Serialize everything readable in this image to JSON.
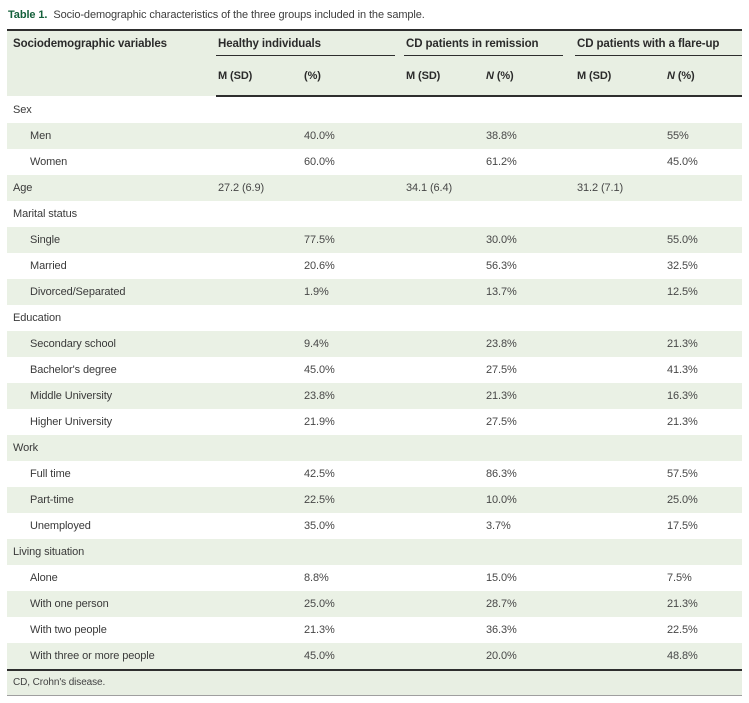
{
  "caption": {
    "label": "Table 1.",
    "text": "Socio-demographic characteristics of the three groups included in the sample."
  },
  "table": {
    "variable_header": "Sociodemographic variables",
    "groups": [
      {
        "label": "Healthy individuals",
        "sub": [
          "M (SD)",
          "(%)"
        ]
      },
      {
        "label": "CD patients in remission",
        "sub": [
          "M (SD)",
          "N (%)"
        ]
      },
      {
        "label": "CD patients with a flare-up",
        "sub": [
          "M (SD)",
          "N (%)"
        ]
      }
    ],
    "rows": [
      {
        "type": "section",
        "label": "Sex",
        "cells": [
          "",
          "",
          "",
          "",
          "",
          ""
        ]
      },
      {
        "type": "item",
        "label": "Men",
        "cells": [
          "",
          "40.0%",
          "",
          "38.8%",
          "",
          "55%"
        ]
      },
      {
        "type": "item",
        "label": "Women",
        "cells": [
          "",
          "60.0%",
          "",
          "61.2%",
          "",
          "45.0%"
        ]
      },
      {
        "type": "section",
        "label": "Age",
        "cells": [
          "27.2 (6.9)",
          "",
          "34.1 (6.4)",
          "",
          "31.2 (7.1)",
          ""
        ]
      },
      {
        "type": "section",
        "label": "Marital status",
        "cells": [
          "",
          "",
          "",
          "",
          "",
          ""
        ]
      },
      {
        "type": "item",
        "label": "Single",
        "cells": [
          "",
          "77.5%",
          "",
          "30.0%",
          "",
          "55.0%"
        ]
      },
      {
        "type": "item",
        "label": "Married",
        "cells": [
          "",
          "20.6%",
          "",
          "56.3%",
          "",
          "32.5%"
        ]
      },
      {
        "type": "item",
        "label": "Divorced/Separated",
        "cells": [
          "",
          "1.9%",
          "",
          "13.7%",
          "",
          "12.5%"
        ]
      },
      {
        "type": "section",
        "label": "Education",
        "cells": [
          "",
          "",
          "",
          "",
          "",
          ""
        ]
      },
      {
        "type": "item",
        "label": "Secondary school",
        "cells": [
          "",
          "9.4%",
          "",
          "23.8%",
          "",
          "21.3%"
        ]
      },
      {
        "type": "item",
        "label": "Bachelor's degree",
        "cells": [
          "",
          "45.0%",
          "",
          "27.5%",
          "",
          "41.3%"
        ]
      },
      {
        "type": "item",
        "label": "Middle University",
        "cells": [
          "",
          "23.8%",
          "",
          "21.3%",
          "",
          "16.3%"
        ]
      },
      {
        "type": "item",
        "label": "Higher University",
        "cells": [
          "",
          "21.9%",
          "",
          "27.5%",
          "",
          "21.3%"
        ]
      },
      {
        "type": "section",
        "label": "Work",
        "cells": [
          "",
          "",
          "",
          "",
          "",
          ""
        ]
      },
      {
        "type": "item",
        "label": "Full time",
        "cells": [
          "",
          "42.5%",
          "",
          "86.3%",
          "",
          "57.5%"
        ]
      },
      {
        "type": "item",
        "label": "Part-time",
        "cells": [
          "",
          "22.5%",
          "",
          "10.0%",
          "",
          "25.0%"
        ]
      },
      {
        "type": "item",
        "label": "Unemployed",
        "cells": [
          "",
          "35.0%",
          "",
          "3.7%",
          "",
          "17.5%"
        ]
      },
      {
        "type": "section",
        "label": "Living situation",
        "cells": [
          "",
          "",
          "",
          "",
          "",
          ""
        ]
      },
      {
        "type": "item",
        "label": "Alone",
        "cells": [
          "",
          "8.8%",
          "",
          "15.0%",
          "",
          "7.5%"
        ]
      },
      {
        "type": "item",
        "label": "With one person",
        "cells": [
          "",
          "25.0%",
          "",
          "28.7%",
          "",
          "21.3%"
        ]
      },
      {
        "type": "item",
        "label": "With two people",
        "cells": [
          "",
          "21.3%",
          "",
          "36.3%",
          "",
          "22.5%"
        ]
      },
      {
        "type": "item",
        "label": "With three or more people",
        "cells": [
          "",
          "45.0%",
          "",
          "20.0%",
          "",
          "48.8%"
        ]
      }
    ]
  },
  "footnote": "CD, Crohn's disease.",
  "colors": {
    "accent_green": "#14603a",
    "row_stripe": "#eaf1e5",
    "header_bg": "#e8efe3",
    "rule_dark": "#2e2e2e"
  }
}
